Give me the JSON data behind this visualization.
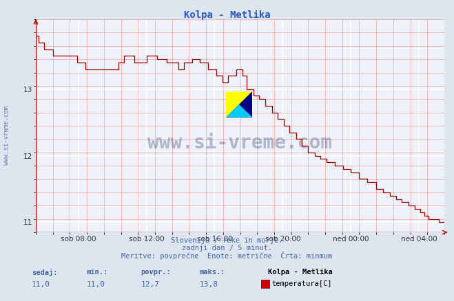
{
  "title": "Kolpa - Metlika",
  "title_color": "#2255cc",
  "bg_color": "#dde5ee",
  "plot_bg_color": "#eef2f8",
  "grid_color_major": "#ffffff",
  "grid_color_minor": "#f0aaaa",
  "line_color": "#990000",
  "line_width": 1.0,
  "xlabel_labels": [
    "sob 08:00",
    "sob 12:00",
    "sob 16:00",
    "sob 20:00",
    "ned 00:00",
    "ned 04:00"
  ],
  "ylim_min": 10.85,
  "ylim_max": 14.05,
  "yticks": [
    11,
    12,
    13
  ],
  "watermark": "www.si-vreme.com",
  "watermark_color": "#1a3060",
  "watermark_alpha": 0.3,
  "side_text": "www.si-vreme.com",
  "footer_line1": "Slovenija / reke in morje.",
  "footer_line2": "zadnji dan / 5 minut.",
  "footer_line3": "Meritve: povprečne  Enote: metrične  Črta: minmum",
  "footer_color": "#4466aa",
  "stats_labels": [
    "sedaj:",
    "min.:",
    "povpr.:",
    "maks.:"
  ],
  "stats_values": [
    "11,0",
    "11,0",
    "12,7",
    "13,8"
  ],
  "legend_title": "Kolpa - Metlika",
  "legend_entry": "temperatura[C]",
  "legend_color": "#cc0000"
}
